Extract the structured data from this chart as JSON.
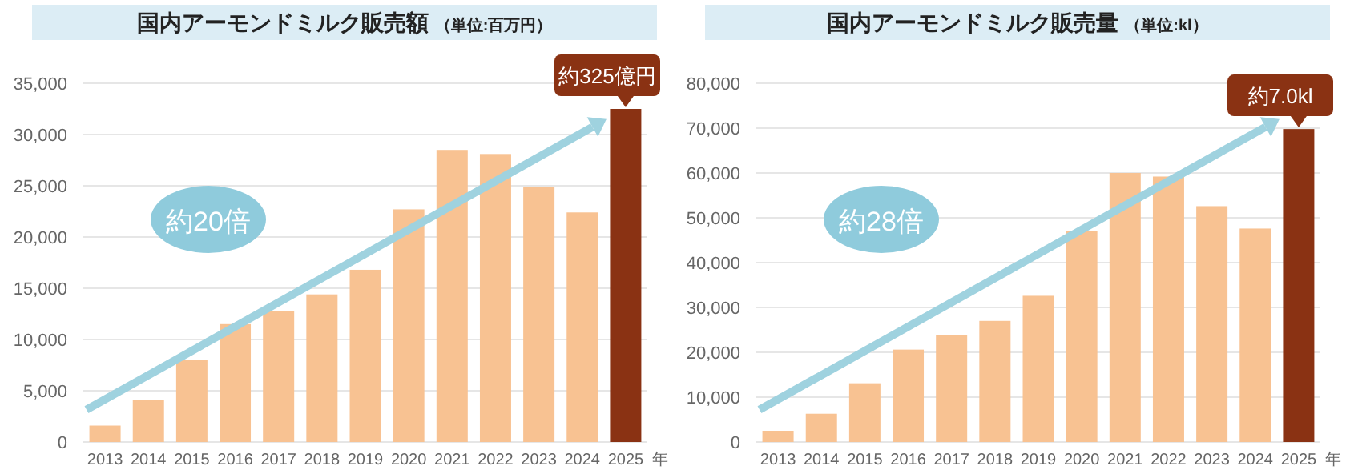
{
  "chart_data": [
    {
      "type": "bar",
      "title": "国内アーモンドミルク販売額",
      "subtitle": "（単位:百万円）",
      "xlabel": "年",
      "categories": [
        "2013",
        "2014",
        "2015",
        "2016",
        "2017",
        "2018",
        "2019",
        "2020",
        "2021",
        "2022",
        "2023",
        "2024",
        "2025"
      ],
      "values": [
        1600,
        4100,
        8000,
        11500,
        12800,
        14400,
        16800,
        22700,
        28500,
        28100,
        24900,
        22400,
        32500
      ],
      "colors": [
        "#f8c292",
        "#f8c292",
        "#f8c292",
        "#f8c292",
        "#f8c292",
        "#f8c292",
        "#f8c292",
        "#f8c292",
        "#f8c292",
        "#f8c292",
        "#f8c292",
        "#f8c292",
        "#8a3213"
      ],
      "ylim": [
        0,
        35000
      ],
      "yticks": [
        0,
        {
          "value": 5000,
          "label": "5,000"
        },
        {
          "value": 10000,
          "label": "10,000"
        },
        {
          "value": 15000,
          "label": "15,000"
        },
        {
          "value": 20000,
          "label": "20,000"
        },
        {
          "value": 25000,
          "label": "25,000"
        },
        {
          "value": 30000,
          "label": "30,000"
        },
        {
          "value": 35000,
          "label": "35,000"
        }
      ],
      "grid": "y",
      "annotations": [
        "約20倍",
        {
          "text": "約325億円",
          "x": "2025",
          "y": 32500
        }
      ]
    },
    {
      "type": "bar",
      "title": "国内アーモンドミルク販売量",
      "subtitle": "（単位:kl）",
      "xlabel": "年",
      "categories": [
        "2013",
        "2014",
        "2015",
        "2016",
        "2017",
        "2018",
        "2019",
        "2020",
        "2021",
        "2022",
        "2023",
        "2024",
        "2025"
      ],
      "values": [
        2500,
        6300,
        13100,
        20600,
        23800,
        27000,
        32600,
        47000,
        60000,
        59200,
        52600,
        47600,
        69800
      ],
      "colors": [
        "#f8c292",
        "#f8c292",
        "#f8c292",
        "#f8c292",
        "#f8c292",
        "#f8c292",
        "#f8c292",
        "#f8c292",
        "#f8c292",
        "#f8c292",
        "#f8c292",
        "#f8c292",
        "#8a3213"
      ],
      "ylim": [
        0,
        80000
      ],
      "yticks": [
        0,
        {
          "value": 10000,
          "label": "10,000"
        },
        {
          "value": 20000,
          "label": "20,000"
        },
        {
          "value": 30000,
          "label": "30,000"
        },
        {
          "value": 40000,
          "label": "40,000"
        },
        {
          "value": 50000,
          "label": "50,000"
        },
        {
          "value": 60000,
          "label": "60,000"
        },
        {
          "value": 70000,
          "label": "70,000"
        },
        {
          "value": 80000,
          "label": "80,000"
        }
      ],
      "grid": "y",
      "annotations": [
        "約28倍",
        {
          "text": "約7.0kl",
          "x": "2025",
          "y": 69800
        }
      ]
    }
  ]
}
